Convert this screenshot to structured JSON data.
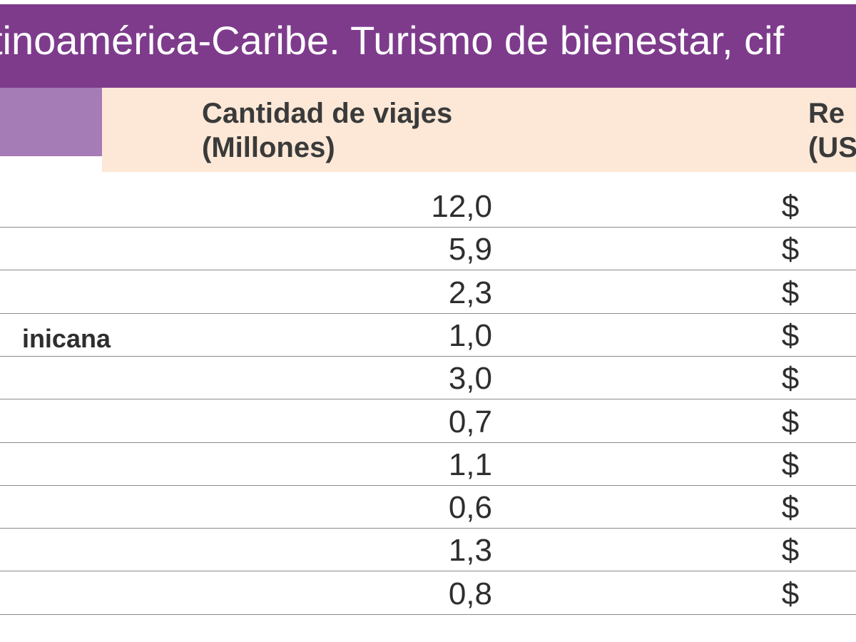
{
  "title": "tinoamérica-Caribe. Turismo de bienestar, cif",
  "columns": {
    "trips": "Cantidad de viajes\n(Millones)",
    "trips_line1": "Cantidad de viajes",
    "trips_line2": "(Millones)",
    "revenue_line1": "Re",
    "revenue_line2": "(US"
  },
  "rows": [
    {
      "country": "",
      "trips": "12,0",
      "currency": "$"
    },
    {
      "country": "",
      "trips": "5,9",
      "currency": "$"
    },
    {
      "country": "",
      "trips": "2,3",
      "currency": "$"
    },
    {
      "country": "inicana",
      "trips": "1,0",
      "currency": "$"
    },
    {
      "country": "",
      "trips": "3,0",
      "currency": "$"
    },
    {
      "country": "",
      "trips": "0,7",
      "currency": "$"
    },
    {
      "country": "",
      "trips": "1,1",
      "currency": "$"
    },
    {
      "country": "",
      "trips": "0,6",
      "currency": "$"
    },
    {
      "country": "",
      "trips": "1,3",
      "currency": "$"
    },
    {
      "country": "",
      "trips": "0,8",
      "currency": "$"
    }
  ],
  "colors": {
    "title_bg": "#7e3b8c",
    "header_purple": "#a57cb5",
    "header_peach": "#fde8d7"
  }
}
